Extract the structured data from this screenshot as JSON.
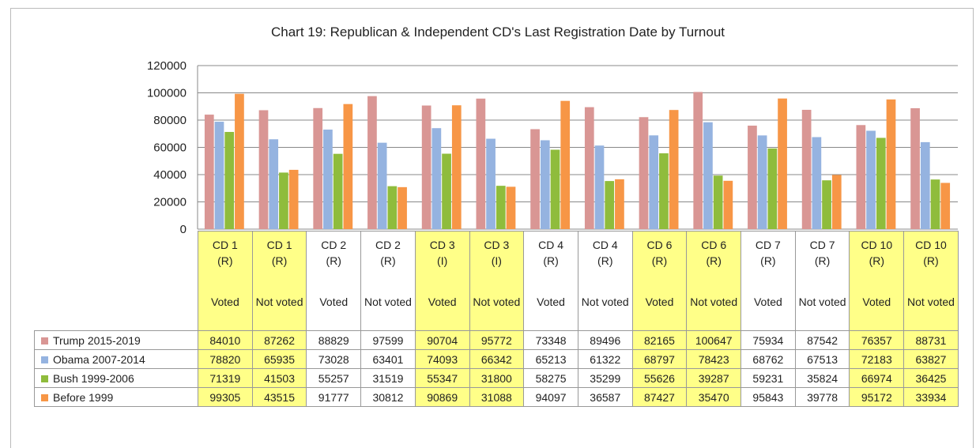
{
  "chart_data": {
    "type": "bar",
    "title": "Chart 19: Republican & Independent CD's Last Registration Date by Turnout",
    "categories": [
      {
        "district": "CD 1",
        "party": "(R)",
        "turnout": "Voted"
      },
      {
        "district": "CD 1",
        "party": "(R)",
        "turnout": "Not voted"
      },
      {
        "district": "CD 2",
        "party": "(R)",
        "turnout": "Voted"
      },
      {
        "district": "CD 2",
        "party": "(R)",
        "turnout": "Not voted"
      },
      {
        "district": "CD 3",
        "party": "(I)",
        "turnout": "Voted"
      },
      {
        "district": "CD 3",
        "party": "(I)",
        "turnout": "Not voted"
      },
      {
        "district": "CD 4",
        "party": "(R)",
        "turnout": "Voted"
      },
      {
        "district": "CD 4",
        "party": "(R)",
        "turnout": "Not voted"
      },
      {
        "district": "CD 6",
        "party": "(R)",
        "turnout": "Voted"
      },
      {
        "district": "CD 6",
        "party": "(R)",
        "turnout": "Not voted"
      },
      {
        "district": "CD 7",
        "party": "(R)",
        "turnout": "Voted"
      },
      {
        "district": "CD 7",
        "party": "(R)",
        "turnout": "Not voted"
      },
      {
        "district": "CD 10",
        "party": "(R)",
        "turnout": "Voted"
      },
      {
        "district": "CD 10",
        "party": "(R)",
        "turnout": "Not voted"
      }
    ],
    "series": [
      {
        "name": "Trump 2015-2019",
        "color": "#d99694",
        "values": [
          84010,
          87262,
          88829,
          97599,
          90704,
          95772,
          73348,
          89496,
          82165,
          100647,
          75934,
          87542,
          76357,
          88731
        ]
      },
      {
        "name": "Obama 2007-2014",
        "color": "#95b3e0",
        "values": [
          78820,
          65935,
          73028,
          63401,
          74093,
          66342,
          65213,
          61322,
          68797,
          78423,
          68762,
          67513,
          72183,
          63827
        ]
      },
      {
        "name": "Bush 1999-2006",
        "color": "#8fbc3c",
        "values": [
          71319,
          41503,
          55257,
          31519,
          55347,
          31800,
          58275,
          35299,
          55626,
          39287,
          59231,
          35824,
          66974,
          36425
        ]
      },
      {
        "name": "Before 1999",
        "color": "#f79646",
        "values": [
          99305,
          43515,
          91777,
          30812,
          90869,
          31088,
          94097,
          36587,
          87427,
          35470,
          95843,
          39778,
          95172,
          33934
        ]
      }
    ],
    "ylim": [
      0,
      120000
    ],
    "yticks": [
      0,
      20000,
      40000,
      60000,
      80000,
      100000,
      120000
    ],
    "grid": true,
    "highlight_color": "#ffff88",
    "highlighted": [
      0,
      1,
      4,
      5,
      8,
      9,
      12,
      13
    ]
  }
}
